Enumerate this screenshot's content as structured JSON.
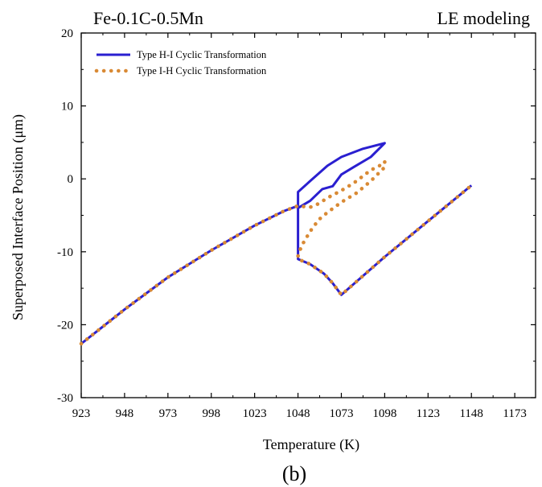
{
  "figure": {
    "top_left_label": "Fe-0.1C-0.5Mn",
    "top_right_label": "LE modeling",
    "panel_label": "(b)"
  },
  "chart_data": {
    "type": "line",
    "xlabel": "Temperature (K)",
    "ylabel": "Superposed Interface Position (μm)",
    "xlim": [
      923,
      1185
    ],
    "ylim": [
      -30,
      20
    ],
    "x_ticks": [
      923,
      948,
      973,
      998,
      1023,
      1048,
      1073,
      1098,
      1123,
      1148,
      1173
    ],
    "y_ticks": [
      -30,
      -20,
      -10,
      0,
      10,
      20
    ],
    "grid": false,
    "legend_position": "top-left",
    "series": [
      {
        "name": "Type H-I Cyclic Transformation",
        "color": "#2a1fd0",
        "style": "solid",
        "points": [
          [
            923,
            -22.6
          ],
          [
            948,
            -17.9
          ],
          [
            973,
            -13.5
          ],
          [
            998,
            -9.8
          ],
          [
            1023,
            -6.4
          ],
          [
            1040,
            -4.4
          ],
          [
            1048,
            -3.7
          ],
          [
            1048,
            -1.8
          ],
          [
            1055,
            -0.3
          ],
          [
            1065,
            1.8
          ],
          [
            1073,
            3.0
          ],
          [
            1085,
            4.1
          ],
          [
            1098,
            4.9
          ],
          [
            1090,
            3.0
          ],
          [
            1080,
            1.6
          ],
          [
            1073,
            0.6
          ],
          [
            1068,
            -1.0
          ],
          [
            1062,
            -1.4
          ],
          [
            1055,
            -3.0
          ],
          [
            1048,
            -4.0
          ],
          [
            1048,
            -11.0
          ],
          [
            1055,
            -11.7
          ],
          [
            1063,
            -13.0
          ],
          [
            1068,
            -14.3
          ],
          [
            1073,
            -15.9
          ],
          [
            1098,
            -10.7
          ],
          [
            1123,
            -5.8
          ],
          [
            1148,
            -0.9
          ]
        ]
      },
      {
        "name": "Type I-H Cyclic Transformation",
        "color": "#d98a35",
        "style": "dotted",
        "points": [
          [
            923,
            -22.6
          ],
          [
            948,
            -17.9
          ],
          [
            973,
            -13.5
          ],
          [
            998,
            -9.8
          ],
          [
            1023,
            -6.4
          ],
          [
            1040,
            -4.4
          ],
          [
            1048,
            -3.7
          ],
          [
            1055,
            -3.9
          ],
          [
            1060,
            -3.4
          ],
          [
            1065,
            -2.6
          ],
          [
            1073,
            -1.6
          ],
          [
            1080,
            -0.6
          ],
          [
            1085,
            0.3
          ],
          [
            1090,
            1.2
          ],
          [
            1095,
            1.8
          ],
          [
            1098,
            2.4
          ],
          [
            1098,
            1.6
          ],
          [
            1090,
            -0.3
          ],
          [
            1082,
            -1.9
          ],
          [
            1073,
            -3.2
          ],
          [
            1065,
            -4.6
          ],
          [
            1060,
            -5.6
          ],
          [
            1055,
            -7.2
          ],
          [
            1050,
            -9.2
          ],
          [
            1048,
            -10.6
          ],
          [
            1048,
            -11.0
          ],
          [
            1055,
            -11.7
          ],
          [
            1063,
            -13.0
          ],
          [
            1068,
            -14.3
          ],
          [
            1073,
            -15.9
          ],
          [
            1098,
            -10.7
          ],
          [
            1123,
            -5.8
          ],
          [
            1148,
            -0.9
          ]
        ]
      }
    ]
  }
}
